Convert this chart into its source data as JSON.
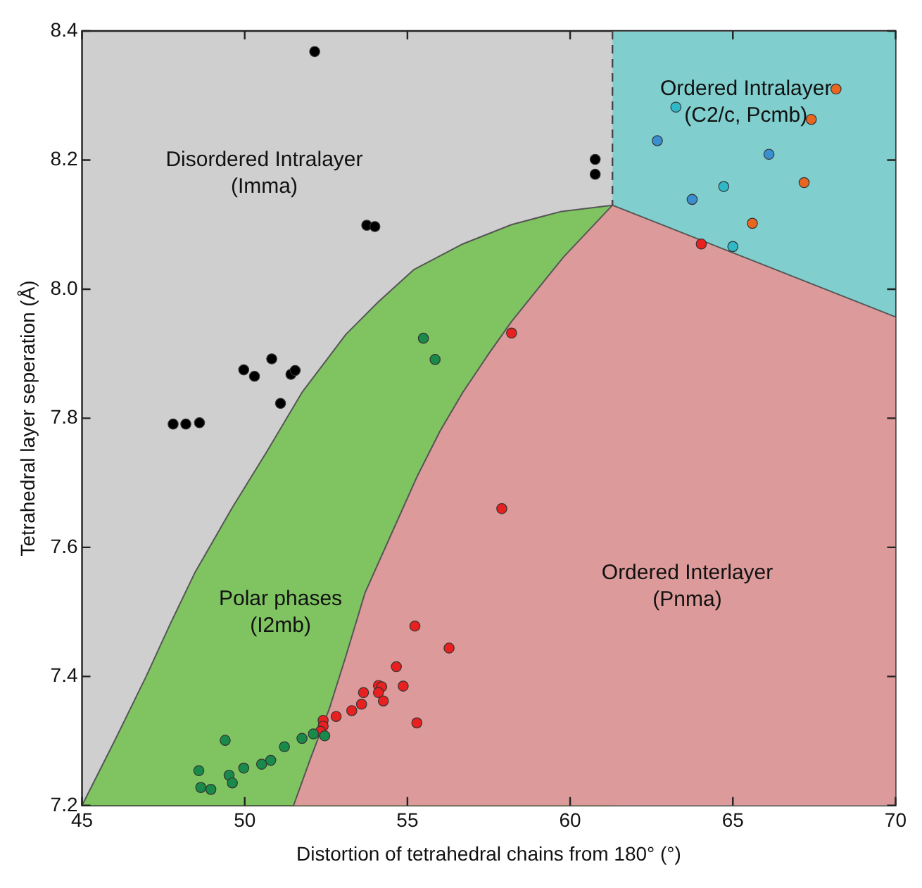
{
  "chart_data": {
    "type": "scatter",
    "xlabel": "Distortion of tetrahedral chains from 180° (°)",
    "ylabel": "Tetrahedral layer seperation (Å)",
    "xlim": [
      45,
      70
    ],
    "xticks": [
      45,
      50,
      55,
      60,
      65,
      70
    ],
    "ylim": [
      7.2,
      8.4
    ],
    "yticks": [
      7.2,
      7.4,
      7.6,
      7.8,
      {
        "value": 8,
        "label": "8.0"
      },
      8.2,
      8.4
    ],
    "legend": false,
    "marker": "circle",
    "annotations": [
      "Disordered Intralayer\n(Imma)",
      "Ordered Intralayer\n(C2/c, Pcmb)",
      "Polar phases\n(I2mb)",
      "Ordered Interlayer\n(Pnma)"
    ],
    "series": [
      {
        "type": "area",
        "color": "#80cece",
        "marker": "none",
        "x": [
          61.3,
          70
        ],
        "values": [
          8.4,
          8.4
        ]
      },
      {
        "type": "area",
        "color": "#80c462",
        "marker": "none",
        "x": [
          45,
          46,
          46.97,
          47.7,
          48.46,
          49.6,
          50.7,
          51.76,
          53.11,
          54.1,
          55.19,
          56.7,
          58.2,
          59.7,
          61.3
        ],
        "values": [
          7.2,
          7.3,
          7.4,
          7.48,
          7.56,
          7.66,
          7.75,
          7.84,
          7.93,
          7.98,
          8.03,
          8.07,
          8.1,
          8.12,
          8.13
        ]
      },
      {
        "type": "area",
        "color": "#dc9a9a",
        "marker": "none",
        "x": [
          51.5,
          52,
          52.6,
          53.1,
          53.7,
          54.5,
          55.3,
          56,
          56.7,
          57.5,
          58.2,
          59,
          59.8,
          61.3,
          70
        ],
        "values": [
          7.2,
          7.27,
          7.35,
          7.43,
          7.53,
          7.62,
          7.71,
          7.78,
          7.84,
          7.9,
          7.95,
          8,
          8.05,
          8.13,
          7.957
        ]
      },
      {
        "type": "line",
        "color": "#444444",
        "marker": "none",
        "line_style": "dashed",
        "x": [
          61.3,
          61.3
        ],
        "values": [
          8.4,
          8.13
        ]
      },
      {
        "type": "scatter",
        "color": "#000000",
        "x": [
          52.15,
          53.75,
          54.0,
          50.83,
          49.97,
          50.3,
          51.42,
          51.55,
          51.1,
          47.8,
          48.19,
          48.61,
          60.77,
          60.77
        ],
        "values": [
          8.368,
          8.099,
          8.097,
          7.892,
          7.875,
          7.865,
          7.868,
          7.874,
          7.823,
          7.791,
          7.791,
          7.793,
          8.201,
          8.178
        ]
      },
      {
        "type": "scatter",
        "color": "#1a8a4a",
        "x": [
          55.49,
          55.85,
          49.4,
          48.59,
          48.65,
          48.96,
          49.52,
          49.62,
          49.97,
          50.52,
          50.8,
          51.22,
          51.76,
          52.11,
          52.46
        ],
        "values": [
          7.924,
          7.891,
          7.301,
          7.254,
          7.228,
          7.225,
          7.247,
          7.235,
          7.258,
          7.264,
          7.27,
          7.291,
          7.304,
          7.311,
          7.308
        ]
      },
      {
        "type": "scatter",
        "color": "#e8201f",
        "x": [
          57.9,
          55.23,
          56.28,
          54.66,
          54.87,
          54.11,
          54.21,
          53.65,
          54.11,
          54.26,
          53.59,
          53.29,
          52.81,
          52.41,
          52.41,
          52.33,
          55.29,
          64.03,
          58.2
        ],
        "values": [
          7.66,
          7.478,
          7.444,
          7.415,
          7.385,
          7.386,
          7.384,
          7.375,
          7.375,
          7.362,
          7.357,
          7.347,
          7.338,
          7.332,
          7.323,
          7.315,
          7.328,
          8.07,
          7.932
        ]
      },
      {
        "type": "scatter",
        "color": "#30b8c8",
        "x": [
          63.25,
          64.72,
          65.0
        ],
        "values": [
          8.282,
          8.159,
          8.066
        ]
      },
      {
        "type": "scatter",
        "color": "#3a8fd0",
        "x": [
          62.68,
          66.11,
          63.75
        ],
        "values": [
          8.23,
          8.209,
          8.139
        ]
      },
      {
        "type": "scatter",
        "color": "#e8661f",
        "x": [
          68.17,
          67.41,
          67.19,
          65.6
        ],
        "values": [
          8.31,
          8.263,
          8.165,
          8.102
        ]
      }
    ]
  }
}
